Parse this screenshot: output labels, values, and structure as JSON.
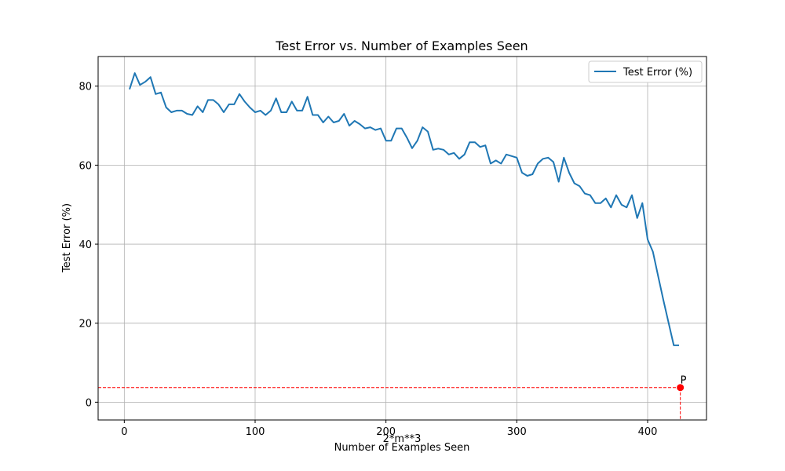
{
  "chart_data": {
    "type": "line",
    "title": "Test Error vs. Number of Examples Seen",
    "xlabel": "Number of Examples Seen",
    "ylabel": "Test Error (%)",
    "xlim": [
      -20,
      445
    ],
    "ylim": [
      -4.5,
      87.5
    ],
    "xticks": [
      0,
      100,
      200,
      300,
      400
    ],
    "yticks": [
      0,
      20,
      40,
      60,
      80
    ],
    "grid": true,
    "legend_position": "top-right",
    "colors": {
      "series": "#1f77b4",
      "marker": "#ff0000",
      "guide": "#ff0000",
      "grid": "#b0b0b0"
    },
    "series": [
      {
        "name": "Test Error (%)",
        "x": [
          4,
          8,
          12,
          16,
          20,
          24,
          28,
          32,
          36,
          40,
          44,
          48,
          52,
          56,
          60,
          64,
          68,
          72,
          76,
          80,
          84,
          88,
          92,
          96,
          100,
          104,
          108,
          112,
          116,
          120,
          124,
          128,
          132,
          136,
          140,
          144,
          148,
          152,
          156,
          160,
          164,
          168,
          172,
          176,
          180,
          184,
          188,
          192,
          196,
          200,
          204,
          208,
          212,
          216,
          220,
          224,
          228,
          232,
          236,
          240,
          244,
          248,
          252,
          256,
          260,
          264,
          268,
          272,
          276,
          280,
          284,
          288,
          292,
          296,
          300,
          304,
          308,
          312,
          316,
          320,
          324,
          328,
          332,
          336,
          340,
          344,
          348,
          352,
          356,
          360,
          364,
          368,
          372,
          376,
          380,
          384,
          388,
          392,
          396,
          400,
          404,
          408,
          412,
          416,
          420,
          424
        ],
        "values": [
          79.2,
          83.3,
          80.3,
          81.1,
          82.3,
          78.0,
          78.4,
          74.6,
          73.4,
          73.8,
          73.8,
          73.0,
          72.7,
          74.9,
          73.4,
          76.5,
          76.5,
          75.4,
          73.4,
          75.4,
          75.4,
          78.0,
          76.1,
          74.6,
          73.4,
          73.8,
          72.7,
          73.8,
          76.9,
          73.4,
          73.4,
          76.1,
          73.8,
          73.8,
          77.3,
          72.7,
          72.7,
          70.8,
          72.3,
          70.8,
          71.2,
          73.0,
          70.0,
          71.2,
          70.4,
          69.3,
          69.6,
          68.9,
          69.3,
          66.2,
          66.2,
          69.3,
          69.3,
          67.0,
          64.3,
          66.2,
          69.6,
          68.5,
          63.9,
          64.2,
          63.9,
          62.7,
          63.1,
          61.6,
          62.7,
          65.8,
          65.8,
          64.6,
          65.0,
          60.4,
          61.2,
          60.4,
          62.7,
          62.3,
          61.9,
          58.1,
          57.3,
          57.7,
          60.4,
          61.6,
          61.9,
          60.8,
          55.8,
          61.9,
          58.1,
          55.4,
          54.7,
          52.8,
          52.4,
          50.4,
          50.4,
          51.6,
          49.3,
          52.4,
          50.0,
          49.3,
          52.4,
          46.6,
          50.4,
          41.2,
          38.1,
          32.0,
          25.9,
          20.1,
          14.4,
          14.4
        ]
      }
    ],
    "marked_point": {
      "label": "P",
      "x": 425,
      "y": 3.7
    },
    "annotation": "2*m**3"
  }
}
